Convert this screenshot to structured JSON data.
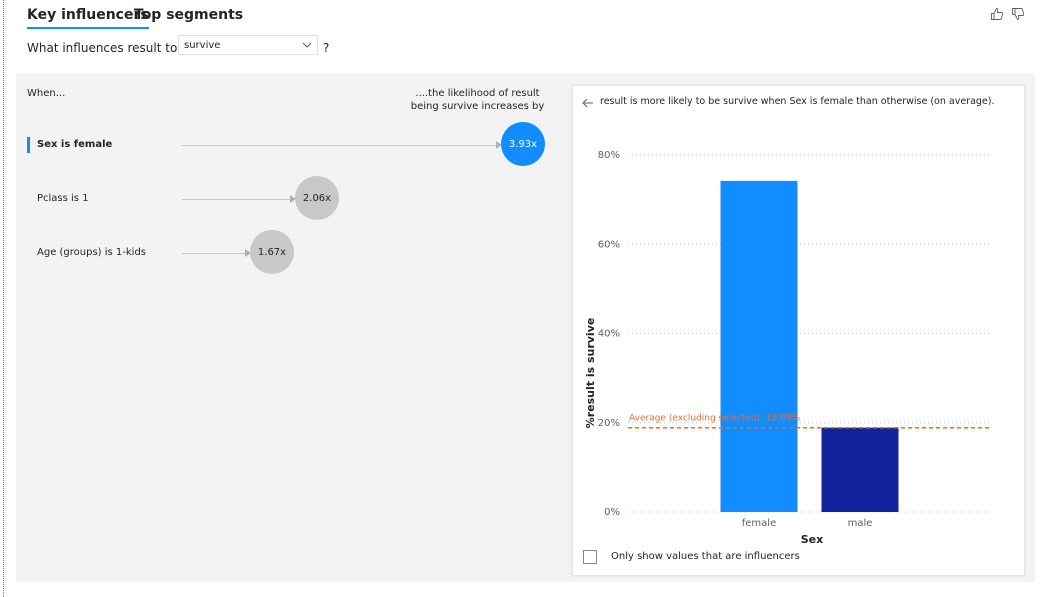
{
  "tabs": [
    {
      "label": "Key influencers",
      "active": true
    },
    {
      "label": "Top segments",
      "active": false
    }
  ],
  "feedback": {
    "like_icon": "thumbs-up-icon",
    "dislike_icon": "thumbs-down-icon"
  },
  "question": {
    "prefix": "What influences result to be",
    "dropdown_value": "survive",
    "help": "?"
  },
  "columns": {
    "when": "When...",
    "likelihood": "....the likelihood of result being survive increases by"
  },
  "influencers": [
    {
      "label": "Sex is female",
      "value": "3.93x",
      "selected": true
    },
    {
      "label": "Pclass is 1",
      "value": "2.06x",
      "selected": false
    },
    {
      "label": "Age (groups) is 1-kids",
      "value": "1.67x",
      "selected": false
    }
  ],
  "detail": {
    "text": "result is more likely to be survive when Sex is female than otherwise (on average).",
    "checkbox_label": "Only show values that are influencers"
  },
  "colors": {
    "accent": "#118DFF",
    "secondary": "#12239E",
    "average_line": "#E66C37",
    "panel_bg": "#F3F3F3",
    "bubble_gray": "#C8C8C8"
  },
  "chart_data": {
    "type": "bar",
    "categories": [
      "female",
      "male"
    ],
    "values": [
      74.2,
      18.9
    ],
    "bar_colors": [
      "#118DFF",
      "#12239E"
    ],
    "xlabel": "Sex",
    "ylabel": "%result is survive",
    "ylim": [
      0,
      80
    ],
    "yticks": [
      "0%",
      "20%",
      "40%",
      "60%",
      "80%"
    ],
    "ytick_values": [
      0,
      20,
      40,
      60,
      80
    ],
    "grid": true,
    "reference_line": {
      "label": "Average (excluding selected): 18.89%",
      "value": 18.89
    }
  }
}
